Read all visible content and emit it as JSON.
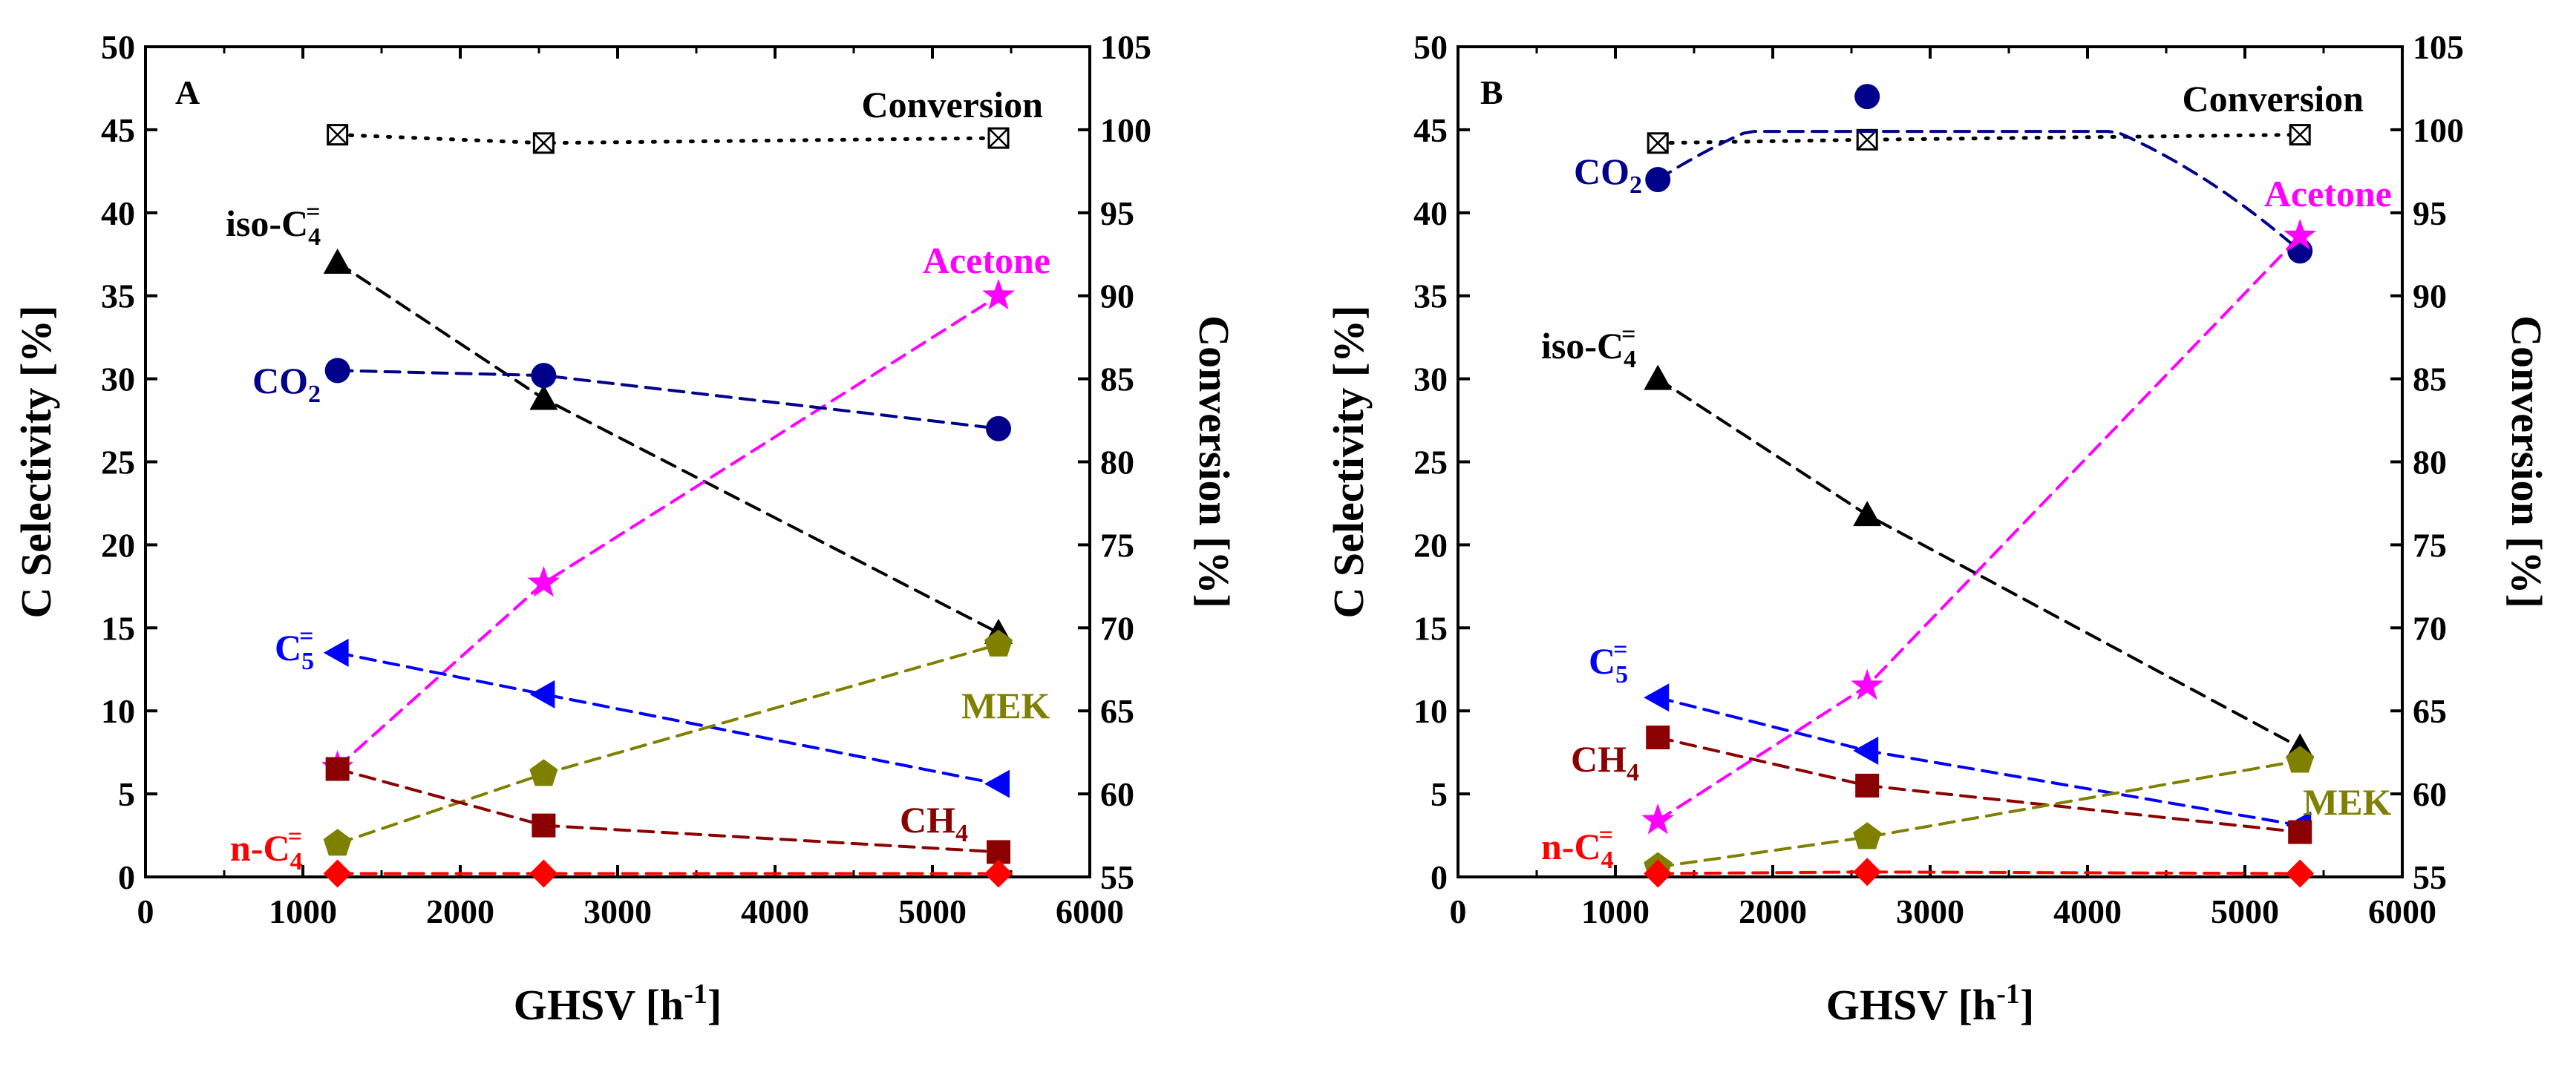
{
  "chart_data": [
    {
      "type": "line",
      "panel_label": "A",
      "xlabel_main": "GHSV [h",
      "xlabel_sup": "-1",
      "xlabel_end": "]",
      "ylabel_left": "C Selectivity [%]",
      "ylabel_right": "Conversion [%]",
      "xlim": [
        0,
        6000
      ],
      "ylim_left": [
        0,
        50
      ],
      "ylim_right": [
        55,
        105
      ],
      "x_ticks": [
        "0",
        "1000",
        "2000",
        "3000",
        "4000",
        "5000",
        "6000"
      ],
      "y_left_ticks": [
        "0",
        "5",
        "10",
        "15",
        "20",
        "25",
        "30",
        "35",
        "40",
        "45",
        "50"
      ],
      "y_right_ticks": [
        "55",
        "60",
        "65",
        "70",
        "75",
        "80",
        "85",
        "90",
        "95",
        "100",
        "105"
      ],
      "series": [
        {
          "name": "Conversion",
          "label_parts": [
            "Conversion"
          ],
          "axis": "right",
          "marker": "boxx",
          "color": "#000000",
          "dash": "dot",
          "x": [
            1220,
            2530,
            5420
          ],
          "y": [
            99.7,
            99.2,
            99.5
          ]
        },
        {
          "name": "iso-C4=",
          "label_parts": [
            "iso-C",
            "4",
            "="
          ],
          "axis": "left",
          "marker": "triangle-up",
          "color": "#000000",
          "dash": "dash",
          "x": [
            1220,
            2530,
            5420
          ],
          "y": [
            37.0,
            28.8,
            14.7
          ]
        },
        {
          "name": "Acetone",
          "label_parts": [
            "Acetone"
          ],
          "axis": "left",
          "marker": "star",
          "color": "#ff00ff",
          "dash": "dash",
          "x": [
            1220,
            2530,
            5420
          ],
          "y": [
            6.6,
            17.7,
            35.0
          ]
        },
        {
          "name": "CO2",
          "label_parts": [
            "CO",
            "2"
          ],
          "axis": "left",
          "marker": "circle",
          "color": "#00008b",
          "dash": "dash",
          "x": [
            1220,
            2530,
            5420
          ],
          "y": [
            30.5,
            30.2,
            27.0
          ]
        },
        {
          "name": "C5=",
          "label_parts": [
            "C",
            "5",
            "="
          ],
          "axis": "left",
          "marker": "triangle-left",
          "color": "#0000ff",
          "dash": "dash",
          "x": [
            1220,
            2530,
            5420
          ],
          "y": [
            13.5,
            11.0,
            5.6
          ]
        },
        {
          "name": "MEK",
          "label_parts": [
            "MEK"
          ],
          "axis": "left",
          "marker": "pentagon",
          "color": "#808000",
          "dash": "dash",
          "x": [
            1220,
            2530,
            5420
          ],
          "y": [
            2.0,
            6.2,
            14.0
          ]
        },
        {
          "name": "CH4",
          "label_parts": [
            "CH",
            "4"
          ],
          "axis": "left",
          "marker": "square",
          "color": "#8b0000",
          "dash": "dash",
          "x": [
            1220,
            2530,
            5420
          ],
          "y": [
            6.5,
            3.1,
            1.5
          ]
        },
        {
          "name": "n-C4=",
          "label_parts": [
            "n-C",
            "4",
            "="
          ],
          "axis": "left",
          "marker": "diamond",
          "color": "#ff0000",
          "dash": "dash",
          "x": [
            1220,
            2530,
            5420
          ],
          "y": [
            0.2,
            0.2,
            0.2
          ]
        }
      ]
    },
    {
      "type": "line",
      "panel_label": "B",
      "xlabel_main": "GHSV [h",
      "xlabel_sup": "-1",
      "xlabel_end": "]",
      "ylabel_left": "C Selectivity [%]",
      "ylabel_right": "Conversion [%]",
      "xlim": [
        0,
        6000
      ],
      "ylim_left": [
        0,
        50
      ],
      "ylim_right": [
        55,
        105
      ],
      "x_ticks": [
        "0",
        "1000",
        "2000",
        "3000",
        "4000",
        "5000",
        "6000"
      ],
      "y_left_ticks": [
        "0",
        "5",
        "10",
        "15",
        "20",
        "25",
        "30",
        "35",
        "40",
        "45",
        "50"
      ],
      "y_right_ticks": [
        "55",
        "60",
        "65",
        "70",
        "75",
        "80",
        "85",
        "90",
        "95",
        "100",
        "105"
      ],
      "series": [
        {
          "name": "Conversion",
          "label_parts": [
            "Conversion"
          ],
          "axis": "right",
          "marker": "boxx",
          "color": "#000000",
          "dash": "dot",
          "x": [
            1270,
            2600,
            5350
          ],
          "y": [
            99.2,
            99.4,
            99.7
          ]
        },
        {
          "name": "CO2",
          "label_parts": [
            "CO",
            "2"
          ],
          "axis": "left",
          "marker": "circle",
          "color": "#00008b",
          "dash": "dash",
          "x": [
            1270,
            2600,
            5350
          ],
          "y": [
            42.0,
            47.0,
            37.7
          ],
          "curve": true
        },
        {
          "name": "Acetone",
          "label_parts": [
            "Acetone"
          ],
          "axis": "left",
          "marker": "star",
          "color": "#ff00ff",
          "dash": "dash",
          "x": [
            1270,
            2600,
            5350
          ],
          "y": [
            3.4,
            11.5,
            38.6
          ]
        },
        {
          "name": "iso-C4=",
          "label_parts": [
            "iso-C",
            "4",
            "="
          ],
          "axis": "left",
          "marker": "triangle-up",
          "color": "#000000",
          "dash": "dash",
          "x": [
            1270,
            2600,
            5350
          ],
          "y": [
            30.0,
            21.8,
            7.8
          ]
        },
        {
          "name": "C5=",
          "label_parts": [
            "C",
            "5",
            "="
          ],
          "axis": "left",
          "marker": "triangle-left",
          "color": "#0000ff",
          "dash": "dash",
          "x": [
            1270,
            2600,
            5350
          ],
          "y": [
            10.8,
            7.6,
            3.1
          ]
        },
        {
          "name": "CH4",
          "label_parts": [
            "CH",
            "4"
          ],
          "axis": "left",
          "marker": "square",
          "color": "#8b0000",
          "dash": "dash",
          "x": [
            1270,
            2600,
            5350
          ],
          "y": [
            8.4,
            5.5,
            2.7
          ]
        },
        {
          "name": "MEK",
          "label_parts": [
            "MEK"
          ],
          "axis": "left",
          "marker": "pentagon",
          "color": "#808000",
          "dash": "dash",
          "x": [
            1270,
            2600,
            5350
          ],
          "y": [
            0.6,
            2.4,
            7.0
          ]
        },
        {
          "name": "n-C4=",
          "label_parts": [
            "n-C",
            "4",
            "="
          ],
          "axis": "left",
          "marker": "diamond",
          "color": "#ff0000",
          "dash": "dash",
          "x": [
            1270,
            2600,
            5350
          ],
          "y": [
            0.2,
            0.3,
            0.2
          ]
        }
      ]
    }
  ]
}
